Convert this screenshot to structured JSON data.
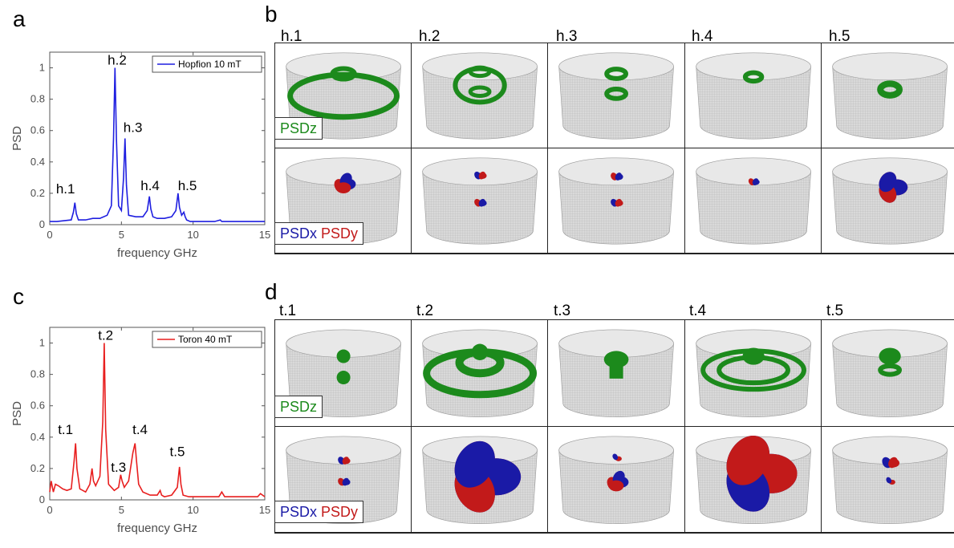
{
  "panels": {
    "a": "a",
    "b": "b",
    "c": "c",
    "d": "d"
  },
  "labels": {
    "psdz": "PSDz",
    "psdx": "PSDx",
    "psdy": "PSDy"
  },
  "colors": {
    "hopfion_line": "#1f1fe0",
    "toron_line": "#e81f1f",
    "psdz_green": "#1c8a1c",
    "psdx_blue": "#1a1aa6",
    "psdy_red": "#c21a1a"
  },
  "hopfion_modes": [
    "h.1",
    "h.2",
    "h.3",
    "h.4",
    "h.5"
  ],
  "toron_modes": [
    "t.1",
    "t.2",
    "t.3",
    "t.4",
    "t.5"
  ],
  "chart_data": [
    {
      "type": "line",
      "id": "a",
      "xlabel": "frequency GHz",
      "ylabel": "PSD",
      "xlim": [
        0,
        15
      ],
      "ylim": [
        0,
        1.1
      ],
      "xticks": [
        0,
        5,
        10,
        15
      ],
      "yticks": [
        0,
        0.2,
        0.4,
        0.6,
        0.8,
        1
      ],
      "legend": "top-right",
      "series": [
        {
          "name": "Hopfion 10 mT",
          "x": [
            0,
            0.5,
            1.0,
            1.5,
            1.65,
            1.75,
            1.85,
            2.0,
            2.5,
            3.0,
            3.5,
            4.0,
            4.3,
            4.45,
            4.55,
            4.65,
            4.8,
            5.0,
            5.15,
            5.25,
            5.35,
            5.5,
            6.0,
            6.5,
            6.8,
            6.95,
            7.05,
            7.2,
            7.5,
            8.0,
            8.5,
            8.8,
            8.95,
            9.05,
            9.2,
            9.35,
            9.45,
            9.55,
            9.8,
            10.5,
            11.5,
            11.9,
            12.0,
            12.1,
            13,
            14,
            15
          ],
          "y": [
            0.02,
            0.02,
            0.025,
            0.03,
            0.08,
            0.14,
            0.07,
            0.03,
            0.03,
            0.04,
            0.04,
            0.06,
            0.12,
            0.55,
            1.0,
            0.55,
            0.12,
            0.09,
            0.3,
            0.55,
            0.25,
            0.06,
            0.05,
            0.05,
            0.09,
            0.18,
            0.1,
            0.05,
            0.04,
            0.04,
            0.05,
            0.09,
            0.2,
            0.11,
            0.06,
            0.08,
            0.05,
            0.03,
            0.02,
            0.02,
            0.02,
            0.03,
            0.02,
            0.02,
            0.02,
            0.02,
            0.02
          ]
        }
      ],
      "annotations": [
        {
          "text": "h.1",
          "x": 1.1,
          "y": 0.2
        },
        {
          "text": "h.2",
          "x": 4.7,
          "y": 1.02
        },
        {
          "text": "h.3",
          "x": 5.8,
          "y": 0.59
        },
        {
          "text": "h.4",
          "x": 7.0,
          "y": 0.22
        },
        {
          "text": "h.5",
          "x": 9.6,
          "y": 0.22
        }
      ]
    },
    {
      "type": "line",
      "id": "c",
      "xlabel": "frequency GHz",
      "ylabel": "PSD",
      "xlim": [
        0,
        15
      ],
      "ylim": [
        0,
        1.1
      ],
      "xticks": [
        0,
        5,
        10,
        15
      ],
      "yticks": [
        0,
        0.2,
        0.4,
        0.6,
        0.8,
        1
      ],
      "legend": "top-right",
      "series": [
        {
          "name": "Toron 40 mT",
          "x": [
            0,
            0.1,
            0.25,
            0.4,
            0.6,
            0.9,
            1.2,
            1.5,
            1.7,
            1.8,
            1.9,
            2.1,
            2.5,
            2.8,
            2.95,
            3.05,
            3.2,
            3.5,
            3.7,
            3.8,
            3.9,
            4.1,
            4.5,
            4.8,
            4.95,
            5.05,
            5.2,
            5.5,
            5.8,
            5.95,
            6.05,
            6.2,
            6.5,
            7.0,
            7.5,
            7.7,
            7.8,
            8.0,
            8.5,
            8.9,
            9.05,
            9.15,
            9.3,
            9.7,
            10.5,
            11.8,
            12.0,
            12.2,
            13,
            14.5,
            14.7,
            15
          ],
          "y": [
            0.05,
            0.12,
            0.05,
            0.1,
            0.09,
            0.07,
            0.06,
            0.07,
            0.25,
            0.36,
            0.2,
            0.07,
            0.05,
            0.1,
            0.2,
            0.12,
            0.09,
            0.15,
            0.5,
            1.0,
            0.45,
            0.1,
            0.06,
            0.08,
            0.16,
            0.12,
            0.08,
            0.12,
            0.3,
            0.36,
            0.25,
            0.1,
            0.05,
            0.03,
            0.03,
            0.06,
            0.03,
            0.02,
            0.03,
            0.08,
            0.21,
            0.1,
            0.03,
            0.02,
            0.02,
            0.02,
            0.05,
            0.02,
            0.02,
            0.02,
            0.04,
            0.02
          ]
        }
      ],
      "annotations": [
        {
          "text": "t.1",
          "x": 1.1,
          "y": 0.42
        },
        {
          "text": "t.2",
          "x": 3.9,
          "y": 1.02
        },
        {
          "text": "t.3",
          "x": 4.8,
          "y": 0.18
        },
        {
          "text": "t.4",
          "x": 6.3,
          "y": 0.42
        },
        {
          "text": "t.5",
          "x": 8.9,
          "y": 0.28
        }
      ]
    }
  ]
}
